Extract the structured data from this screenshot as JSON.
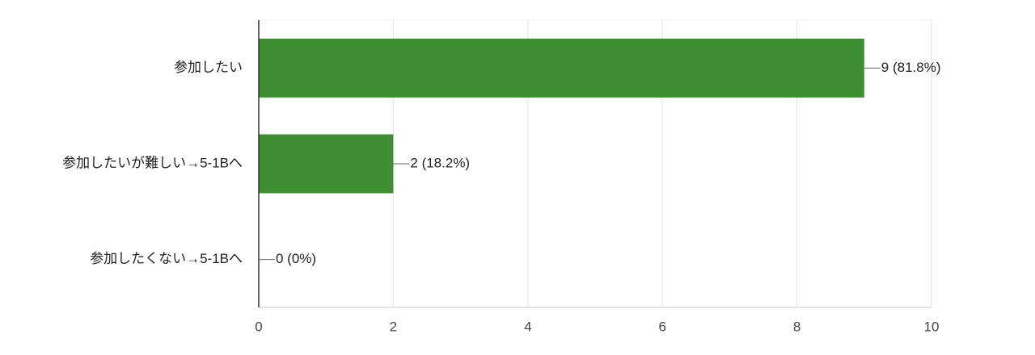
{
  "chart_data": {
    "type": "bar",
    "orientation": "horizontal",
    "categories": [
      "参加したい",
      "参加したいが難しい→5-1Bへ",
      "参加したくない→5-1Bへ"
    ],
    "values": [
      9,
      2,
      0
    ],
    "value_labels": [
      "9 (81.8%)",
      "2 (18.2%)",
      "0 (0%)"
    ],
    "color": "#3d8f31",
    "xlim": [
      0,
      10
    ],
    "xticks": [
      0,
      2,
      4,
      6,
      8,
      10
    ],
    "grid": true
  }
}
